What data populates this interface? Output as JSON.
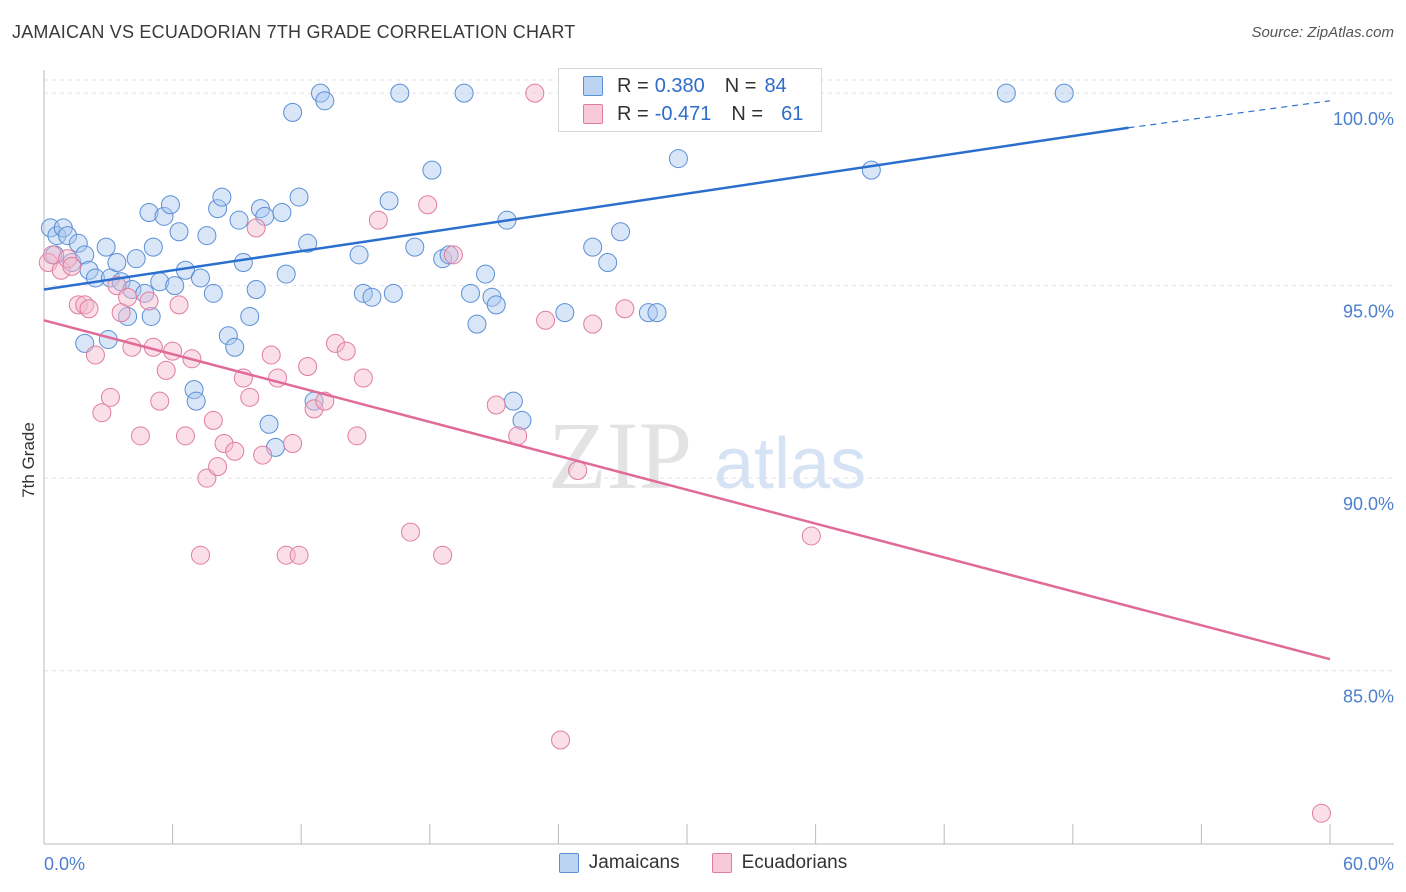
{
  "title": "JAMAICAN VS ECUADORIAN 7TH GRADE CORRELATION CHART",
  "source": "Source: ZipAtlas.com",
  "watermark": {
    "zip": "ZIP",
    "atlas": "atlas"
  },
  "colors": {
    "blue_fill": "#a9c8ef",
    "blue_stroke": "#5b8fd6",
    "blue_line": "#2a6fce",
    "pink_fill": "#f5b8cc",
    "pink_stroke": "#e07d9f",
    "pink_line": "#e06b99",
    "tick_text": "#4c7fcf",
    "grid": "#e4e4e4"
  },
  "legend": {
    "rows": [
      {
        "r_label": "R = ",
        "r_value": "0.380",
        "n_label": "N = ",
        "n_value": "84"
      },
      {
        "r_label": "R = ",
        "r_value": "-0.471",
        "n_label": "N = ",
        "n_value": "61"
      }
    ]
  },
  "chart_data": {
    "type": "scatter",
    "xlabel": "",
    "ylabel": "7th Grade",
    "xlim": [
      0,
      60
    ],
    "ylim": [
      80.5,
      100.6
    ],
    "x_tick_labels": [
      "0.0%",
      "60.0%"
    ],
    "y_ticks": [
      85,
      90,
      95,
      100
    ],
    "y_tick_labels": [
      "85.0%",
      "90.0%",
      "95.0%",
      "100.0%"
    ],
    "grid": "horizontal dashed",
    "legend_placement": "bottom-center",
    "series": [
      {
        "name": "Jamaicans",
        "color": "#a9c8ef",
        "trend": {
          "x0": 0,
          "y0": 94.9,
          "x1": 50.6,
          "y1": 99.1,
          "dash_to_x": 60,
          "dash_to_y": 99.8
        },
        "points": [
          [
            0.3,
            96.5
          ],
          [
            0.6,
            96.3
          ],
          [
            0.9,
            96.5
          ],
          [
            1.1,
            96.3
          ],
          [
            1.3,
            95.6
          ],
          [
            1.6,
            96.1
          ],
          [
            1.9,
            95.8
          ],
          [
            2.1,
            95.4
          ],
          [
            2.4,
            95.2
          ],
          [
            2.9,
            96.0
          ],
          [
            3.1,
            95.2
          ],
          [
            3.4,
            95.6
          ],
          [
            3.6,
            95.1
          ],
          [
            3.9,
            94.2
          ],
          [
            4.1,
            94.9
          ],
          [
            4.3,
            95.7
          ],
          [
            4.7,
            94.8
          ],
          [
            4.9,
            96.9
          ],
          [
            5.1,
            96.0
          ],
          [
            5.4,
            95.1
          ],
          [
            5.6,
            96.8
          ],
          [
            5.9,
            97.1
          ],
          [
            6.1,
            95.0
          ],
          [
            6.3,
            96.4
          ],
          [
            6.6,
            95.4
          ],
          [
            7.0,
            92.3
          ],
          [
            7.1,
            92.0
          ],
          [
            7.3,
            95.2
          ],
          [
            7.6,
            96.3
          ],
          [
            7.9,
            94.8
          ],
          [
            8.1,
            97.0
          ],
          [
            8.3,
            97.3
          ],
          [
            8.6,
            93.7
          ],
          [
            8.9,
            93.4
          ],
          [
            9.1,
            96.7
          ],
          [
            9.3,
            95.6
          ],
          [
            9.6,
            94.2
          ],
          [
            9.9,
            94.9
          ],
          [
            10.1,
            97.0
          ],
          [
            10.3,
            96.8
          ],
          [
            10.5,
            91.4
          ],
          [
            10.8,
            90.8
          ],
          [
            11.1,
            96.9
          ],
          [
            11.3,
            95.3
          ],
          [
            11.6,
            99.5
          ],
          [
            11.9,
            97.3
          ],
          [
            12.3,
            96.1
          ],
          [
            12.6,
            92.0
          ],
          [
            12.9,
            100.0
          ],
          [
            13.1,
            99.8
          ],
          [
            14.7,
            95.8
          ],
          [
            14.9,
            94.8
          ],
          [
            15.3,
            94.7
          ],
          [
            16.1,
            97.2
          ],
          [
            16.3,
            94.8
          ],
          [
            16.6,
            100.0
          ],
          [
            17.3,
            96.0
          ],
          [
            18.1,
            98.0
          ],
          [
            18.6,
            95.7
          ],
          [
            18.9,
            95.8
          ],
          [
            19.6,
            100.0
          ],
          [
            19.9,
            94.8
          ],
          [
            20.2,
            94.0
          ],
          [
            20.6,
            95.3
          ],
          [
            20.9,
            94.7
          ],
          [
            21.1,
            94.5
          ],
          [
            21.6,
            96.7
          ],
          [
            21.9,
            92.0
          ],
          [
            22.3,
            91.5
          ],
          [
            24.3,
            94.3
          ],
          [
            25.6,
            96.0
          ],
          [
            26.3,
            95.6
          ],
          [
            26.9,
            96.4
          ],
          [
            28.2,
            94.3
          ],
          [
            29.6,
            98.3
          ],
          [
            35.8,
            100.0
          ],
          [
            38.6,
            98.0
          ],
          [
            44.9,
            100.0
          ],
          [
            47.6,
            100.0
          ],
          [
            28.6,
            94.3
          ],
          [
            1.9,
            93.5
          ],
          [
            5.0,
            94.2
          ],
          [
            3.0,
            93.6
          ],
          [
            0.5,
            95.8
          ]
        ]
      },
      {
        "name": "Ecuadorians",
        "color": "#f5b8cc",
        "trend": {
          "x0": 0,
          "y0": 94.1,
          "x1": 60,
          "y1": 85.3
        },
        "points": [
          [
            0.2,
            95.6
          ],
          [
            0.4,
            95.8
          ],
          [
            0.8,
            95.4
          ],
          [
            1.1,
            95.7
          ],
          [
            1.3,
            95.5
          ],
          [
            1.6,
            94.5
          ],
          [
            1.9,
            94.5
          ],
          [
            2.1,
            94.4
          ],
          [
            2.4,
            93.2
          ],
          [
            2.7,
            91.7
          ],
          [
            3.1,
            92.1
          ],
          [
            3.4,
            95.0
          ],
          [
            3.6,
            94.3
          ],
          [
            3.9,
            94.7
          ],
          [
            4.1,
            93.4
          ],
          [
            4.5,
            91.1
          ],
          [
            4.9,
            94.6
          ],
          [
            5.1,
            93.4
          ],
          [
            5.4,
            92.0
          ],
          [
            5.7,
            92.8
          ],
          [
            6.0,
            93.3
          ],
          [
            6.3,
            94.5
          ],
          [
            6.6,
            91.1
          ],
          [
            6.9,
            93.1
          ],
          [
            7.3,
            88.0
          ],
          [
            7.6,
            90.0
          ],
          [
            7.9,
            91.5
          ],
          [
            8.1,
            90.3
          ],
          [
            8.4,
            90.9
          ],
          [
            8.9,
            90.7
          ],
          [
            9.3,
            92.6
          ],
          [
            9.6,
            92.1
          ],
          [
            9.9,
            96.5
          ],
          [
            10.2,
            90.6
          ],
          [
            10.6,
            93.2
          ],
          [
            10.9,
            92.6
          ],
          [
            11.3,
            88.0
          ],
          [
            11.6,
            90.9
          ],
          [
            11.9,
            88.0
          ],
          [
            12.3,
            92.9
          ],
          [
            12.6,
            91.8
          ],
          [
            13.1,
            92.0
          ],
          [
            13.6,
            93.5
          ],
          [
            14.1,
            93.3
          ],
          [
            14.6,
            91.1
          ],
          [
            14.9,
            92.6
          ],
          [
            15.6,
            96.7
          ],
          [
            17.1,
            88.6
          ],
          [
            17.9,
            97.1
          ],
          [
            18.6,
            88.0
          ],
          [
            19.1,
            95.8
          ],
          [
            21.1,
            91.9
          ],
          [
            22.1,
            91.1
          ],
          [
            22.9,
            100.0
          ],
          [
            23.4,
            94.1
          ],
          [
            24.1,
            83.2
          ],
          [
            24.9,
            90.2
          ],
          [
            25.6,
            94.0
          ],
          [
            27.1,
            94.4
          ],
          [
            35.8,
            88.5
          ],
          [
            59.6,
            81.3
          ]
        ]
      }
    ]
  }
}
